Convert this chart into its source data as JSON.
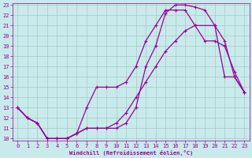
{
  "title": "",
  "xlabel": "Windchill (Refroidissement éolien,°C)",
  "ylabel": "",
  "bg_color": "#c8eaea",
  "grid_color": "#a8c8c8",
  "line_color": "#990099",
  "marker": "+",
  "xlim": [
    -0.5,
    23.5
  ],
  "ylim": [
    9.8,
    23.2
  ],
  "xticks": [
    0,
    1,
    2,
    3,
    4,
    5,
    6,
    7,
    8,
    9,
    10,
    11,
    12,
    13,
    14,
    15,
    16,
    17,
    18,
    19,
    20,
    21,
    22,
    23
  ],
  "yticks": [
    10,
    11,
    12,
    13,
    14,
    15,
    16,
    17,
    18,
    19,
    20,
    21,
    22,
    23
  ],
  "curve1_x": [
    0,
    1,
    2,
    3,
    4,
    5,
    6,
    7,
    8,
    9,
    10,
    11,
    12,
    13,
    14,
    15,
    16,
    17,
    18,
    19,
    20,
    21,
    22,
    23
  ],
  "curve1_y": [
    13.0,
    12.0,
    11.5,
    10.0,
    10.0,
    10.0,
    10.5,
    11.0,
    11.0,
    11.0,
    11.0,
    11.5,
    13.0,
    17.0,
    19.0,
    22.2,
    23.0,
    23.0,
    22.8,
    22.5,
    21.0,
    16.0,
    16.0,
    14.5
  ],
  "curve2_x": [
    0,
    1,
    2,
    3,
    4,
    5,
    6,
    7,
    8,
    9,
    10,
    11,
    12,
    13,
    14,
    15,
    16,
    17,
    18,
    20,
    21,
    22,
    23
  ],
  "curve2_y": [
    13.0,
    12.0,
    11.5,
    10.0,
    10.0,
    10.0,
    10.5,
    13.0,
    15.0,
    15.0,
    15.0,
    15.5,
    17.0,
    19.5,
    21.0,
    22.5,
    22.5,
    22.5,
    21.0,
    21.0,
    19.5,
    16.0,
    14.5
  ],
  "curve3_x": [
    0,
    1,
    2,
    3,
    4,
    5,
    6,
    7,
    8,
    9,
    10,
    11,
    12,
    13,
    14,
    15,
    16,
    17,
    18,
    19,
    20,
    21,
    22,
    23
  ],
  "curve3_y": [
    13.0,
    12.0,
    11.5,
    10.0,
    10.0,
    10.0,
    10.5,
    11.0,
    11.0,
    11.0,
    11.5,
    12.5,
    14.0,
    15.5,
    17.0,
    18.5,
    19.5,
    20.5,
    21.0,
    19.5,
    19.5,
    19.0,
    16.5,
    14.5
  ],
  "tick_labelsize": 5,
  "xlabel_fontsize": 5,
  "lw": 0.9,
  "ms": 3
}
